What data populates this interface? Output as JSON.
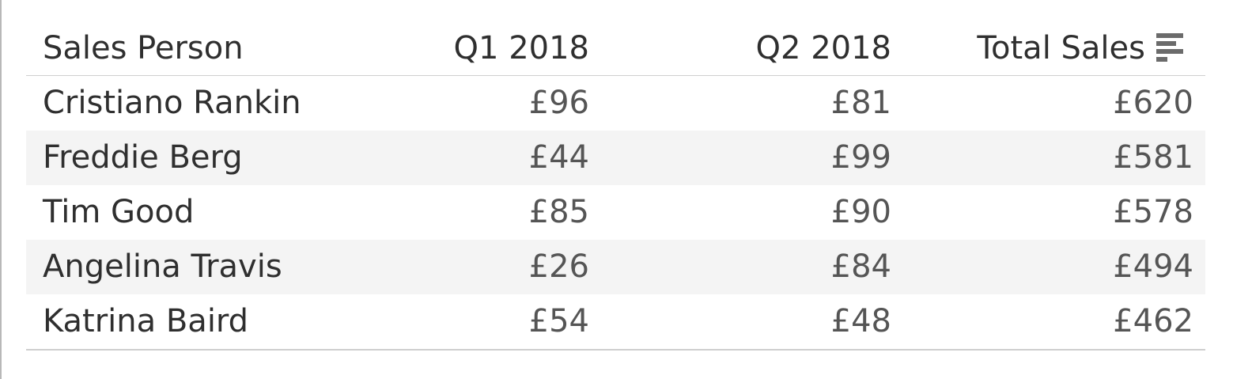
{
  "table": {
    "headers": {
      "name": "Sales Person",
      "q1": "Q1 2018",
      "q2": "Q2 2018",
      "total": "Total Sales"
    },
    "sort_icon": "sort-descending-icon",
    "rows": [
      {
        "name": "Cristiano Rankin",
        "q1": "£96",
        "q2": "£81",
        "total": "£620"
      },
      {
        "name": "Freddie Berg",
        "q1": "£44",
        "q2": "£99",
        "total": "£581"
      },
      {
        "name": "Tim Good",
        "q1": "£85",
        "q2": "£90",
        "total": "£578"
      },
      {
        "name": "Angelina Travis",
        "q1": "£26",
        "q2": "£84",
        "total": "£494"
      },
      {
        "name": "Katrina Baird",
        "q1": "£54",
        "q2": "£48",
        "total": "£462"
      }
    ]
  },
  "colors": {
    "text": "#333333",
    "alt_row": "#f4f4f4",
    "border": "#cfcfcf"
  }
}
